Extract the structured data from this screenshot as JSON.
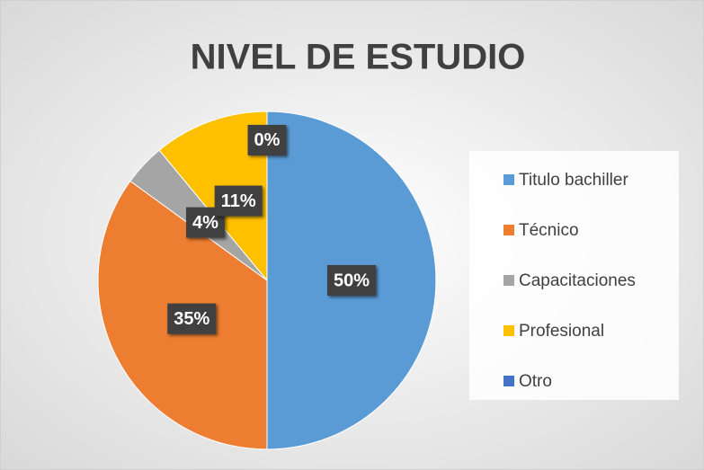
{
  "chart_data": {
    "type": "pie",
    "title": "NIVEL DE ESTUDIO",
    "categories": [
      "Titulo bachiller",
      "Técnico",
      "Capacitaciones",
      "Profesional",
      "Otro"
    ],
    "values": [
      50,
      35,
      4,
      11,
      0
    ],
    "value_labels": [
      "50%",
      "35%",
      "4%",
      "11%",
      "0%"
    ],
    "colors": [
      "#5b9bd5",
      "#ed7d31",
      "#a5a5a5",
      "#ffc000",
      "#4472c4"
    ],
    "legend": "right"
  }
}
